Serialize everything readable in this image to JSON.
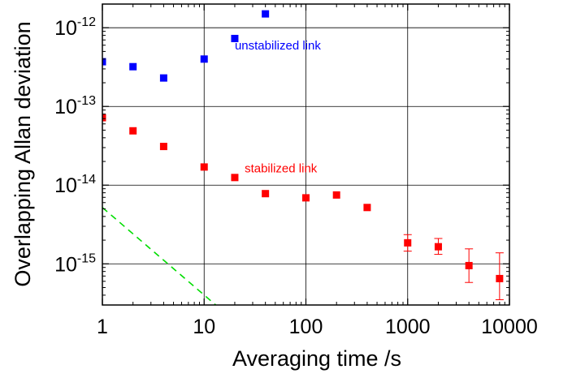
{
  "chart_data": {
    "type": "scatter",
    "title": "",
    "xlabel": "Averaging time /s",
    "ylabel": "Overlapping Allan deviation",
    "x_scale": "log",
    "y_scale": "log",
    "xlim": [
      1,
      10000
    ],
    "ylim": [
      3e-16,
      2e-12
    ],
    "grid": true,
    "x_ticks": [
      {
        "value": 1,
        "label": "1"
      },
      {
        "value": 10,
        "label": "10"
      },
      {
        "value": 100,
        "label": "100"
      },
      {
        "value": 1000,
        "label": "1000"
      },
      {
        "value": 10000,
        "label": "10000"
      }
    ],
    "y_ticks": [
      {
        "value": 1e-15,
        "base": "10",
        "exp": "-15"
      },
      {
        "value": 1e-14,
        "base": "10",
        "exp": "-14"
      },
      {
        "value": 1e-13,
        "base": "10",
        "exp": "-13"
      },
      {
        "value": 1e-12,
        "base": "10",
        "exp": "-12"
      }
    ],
    "series": [
      {
        "color": "#0000ff",
        "marker": "square",
        "x": [
          1,
          2,
          4,
          10,
          20,
          40
        ],
        "y": [
          3.7e-13,
          3.2e-13,
          2.3e-13,
          4e-13,
          7.3e-13,
          1.5e-12
        ]
      },
      {
        "color": "#ff0000",
        "marker": "square",
        "x": [
          1,
          2,
          4,
          10,
          20,
          40,
          100,
          200,
          400,
          1000,
          2000,
          4000,
          8000
        ],
        "y": [
          7.2e-14,
          4.9e-14,
          3.1e-14,
          1.7e-14,
          1.25e-14,
          7.8e-15,
          6.9e-15,
          7.5e-15,
          5.2e-15,
          1.85e-15,
          1.65e-15,
          9.5e-16,
          6.5e-16
        ],
        "y_err_low": [
          null,
          null,
          null,
          null,
          null,
          null,
          null,
          null,
          null,
          1.45e-15,
          1.32e-15,
          5.8e-16,
          3.5e-16
        ],
        "y_err_high": [
          null,
          null,
          null,
          null,
          null,
          null,
          null,
          null,
          null,
          2.35e-15,
          2.1e-15,
          1.55e-15,
          1.38e-15
        ]
      }
    ],
    "reference_line": {
      "color": "#00dd00",
      "style": "dashed",
      "x": [
        1,
        13
      ],
      "y": [
        5.2e-15,
        3e-16
      ]
    },
    "annotations": [
      {
        "text": "unstabilized link",
        "color": "#0000ff",
        "x": 20,
        "y": 5.3e-13
      },
      {
        "text": "stabilized link",
        "color": "#ff0000",
        "x": 25,
        "y": 1.45e-14
      }
    ]
  }
}
